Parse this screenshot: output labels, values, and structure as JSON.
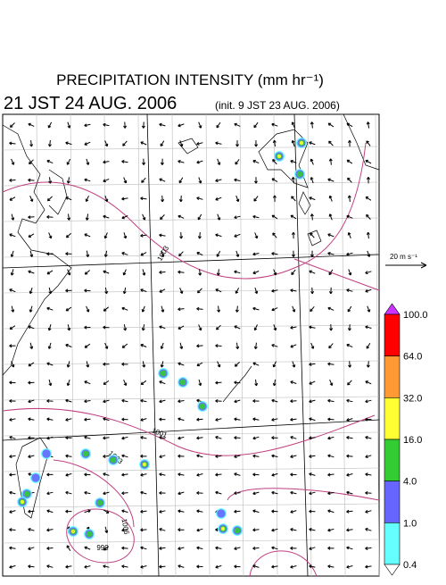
{
  "header": {
    "title": "PRECIPITATION INTENSITY (mm hr⁻¹)",
    "time": "21 JST 24 AUG. 2006",
    "init": "(init. 9 JST 23 AUG. 2006)"
  },
  "wind_scale": {
    "label": "20 m s⁻¹"
  },
  "colorbar": {
    "labels": [
      "100.0",
      "64.0",
      "32.0",
      "16.0",
      "4.0",
      "1.0",
      "0.4"
    ],
    "colors": [
      "#cc33ff",
      "#ff0000",
      "#ff9933",
      "#ffff33",
      "#33cc33",
      "#6666ff",
      "#66ffff",
      "#ffffff"
    ]
  },
  "isobars": {
    "labels": [
      "1003",
      "1001",
      "1003",
      "1006",
      "999"
    ]
  }
}
